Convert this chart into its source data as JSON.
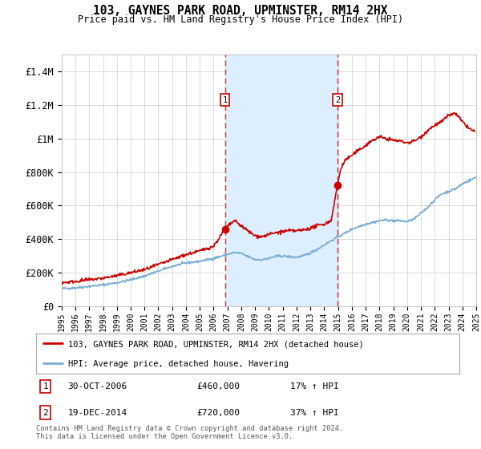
{
  "title": "103, GAYNES PARK ROAD, UPMINSTER, RM14 2HX",
  "subtitle": "Price paid vs. HM Land Registry's House Price Index (HPI)",
  "ylim": [
    0,
    1500000
  ],
  "yticks": [
    0,
    200000,
    400000,
    600000,
    800000,
    1000000,
    1200000,
    1400000
  ],
  "ytick_labels": [
    "£0",
    "£200K",
    "£400K",
    "£600K",
    "£800K",
    "£1M",
    "£1.2M",
    "£1.4M"
  ],
  "red_color": "#cc0000",
  "blue_color": "#7aaed4",
  "dashed_color": "#cc3333",
  "background_color": "#ffffff",
  "plot_bg_color": "#ffffff",
  "shade_color": "#ddeeff",
  "legend_label_red": "103, GAYNES PARK ROAD, UPMINSTER, RM14 2HX (detached house)",
  "legend_label_blue": "HPI: Average price, detached house, Havering",
  "annotation1_date": "30-OCT-2006",
  "annotation1_price": "£460,000",
  "annotation1_hpi": "17% ↑ HPI",
  "annotation2_date": "19-DEC-2014",
  "annotation2_price": "£720,000",
  "annotation2_hpi": "37% ↑ HPI",
  "copyright": "Contains HM Land Registry data © Crown copyright and database right 2024.\nThis data is licensed under the Open Government Licence v3.0.",
  "sale1_x": 2006.83,
  "sale1_y": 460000,
  "sale2_x": 2014.96,
  "sale2_y": 720000,
  "xmin": 1995,
  "xmax": 2025
}
